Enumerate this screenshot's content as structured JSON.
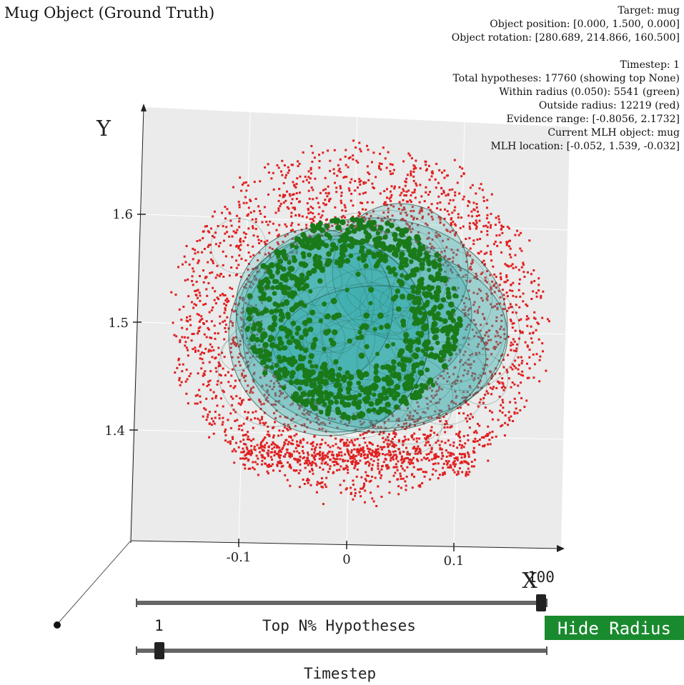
{
  "title": "Mug Object (Ground Truth)",
  "info": {
    "target": "Target: mug",
    "object_position": "Object position: [0.000, 1.500, 0.000]",
    "object_rotation": "Object rotation: [280.689, 214.866, 160.500]",
    "timestep": "Timestep: 1",
    "total_hypotheses": "Total hypotheses: 17760 (showing top None)",
    "within_radius": "Within radius (0.050): 5541 (green)",
    "outside_radius": "Outside radius: 12219 (red)",
    "evidence_range": "Evidence range: [-0.8056, 2.1732]",
    "current_mlh_object": "Current MLH object: mug",
    "mlh_location": "MLH location: [-0.052, 1.539, -0.032]"
  },
  "axes": {
    "x_label": "X",
    "y_label": "Y",
    "x_ticks": [
      "-0.1",
      "0",
      "0.1"
    ],
    "y_ticks": [
      "1.6",
      "1.5",
      "1.4"
    ]
  },
  "colors": {
    "inside_radius": "#1a7a1a",
    "outside_radius": "#e02020",
    "object_mesh": "#2aa8a8",
    "panel": "#ebebeb",
    "button": "#1a8a2e"
  },
  "controls": {
    "top_n": {
      "label": "Top N% Hypotheses",
      "value": "100"
    },
    "timestep": {
      "label": "Timestep",
      "value": "1"
    },
    "radius_button": "Hide Radius"
  }
}
